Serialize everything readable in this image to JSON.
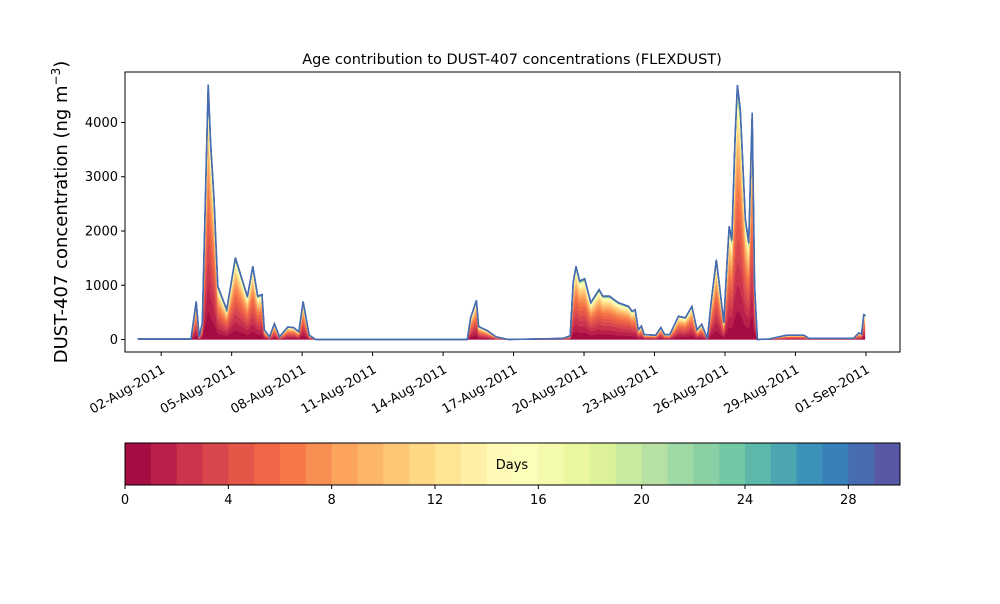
{
  "chart_data": {
    "type": "area",
    "stacked": true,
    "title": "Age contribution to DUST-407 concentrations (FLEXDUST)",
    "ylabel": "DUST-407 concentration (ng m",
    "ylabel_sup": "−3",
    "ylabel_close": ")",
    "xlabel": "",
    "x_units": "day of August 2011",
    "xlim": [
      0.46,
      33.45
    ],
    "ylim": [
      -230,
      4930
    ],
    "yticks": [
      0,
      1000,
      2000,
      3000,
      4000
    ],
    "ytick_labels": [
      "0",
      "1000",
      "2000",
      "3000",
      "4000"
    ],
    "xticks": [
      2,
      5,
      8,
      11,
      14,
      17,
      20,
      23,
      26,
      29,
      32
    ],
    "xtick_labels": [
      "02-Aug-2011",
      "05-Aug-2011",
      "08-Aug-2011",
      "11-Aug-2011",
      "14-Aug-2011",
      "17-Aug-2011",
      "20-Aug-2011",
      "23-Aug-2011",
      "26-Aug-2011",
      "29-Aug-2011",
      "01-Sep-2011"
    ],
    "grid": false,
    "total_series": {
      "x": [
        1.0,
        3.27,
        3.49,
        3.62,
        3.75,
        4.0,
        4.11,
        4.25,
        4.41,
        4.79,
        5.16,
        5.67,
        5.9,
        6.11,
        6.29,
        6.39,
        6.61,
        6.82,
        7.04,
        7.39,
        7.64,
        7.86,
        8.04,
        8.3,
        8.58,
        15.03,
        15.17,
        15.42,
        15.51,
        15.9,
        16.25,
        16.78,
        19.11,
        19.41,
        19.54,
        19.66,
        19.81,
        20.03,
        20.29,
        20.64,
        20.8,
        21.08,
        21.46,
        21.9,
        22.04,
        22.18,
        22.31,
        22.44,
        22.56,
        23.05,
        23.27,
        23.43,
        23.65,
        24.02,
        24.31,
        24.59,
        24.81,
        25.01,
        25.25,
        25.41,
        25.63,
        25.77,
        25.95,
        26.07,
        26.18,
        26.29,
        26.43,
        26.53,
        26.65,
        26.87,
        27.01,
        27.16,
        27.26,
        27.38,
        27.88,
        28.62,
        29.36,
        29.57,
        31.47,
        31.69,
        31.81,
        31.91,
        31.96
      ],
      "y": [
        10,
        10,
        700,
        50,
        300,
        4700,
        3600,
        2600,
        980,
        550,
        1510,
        790,
        1350,
        800,
        830,
        180,
        50,
        290,
        50,
        230,
        220,
        140,
        700,
        80,
        0,
        0,
        400,
        720,
        240,
        160,
        50,
        0,
        20,
        70,
        1050,
        1350,
        1080,
        1120,
        680,
        920,
        800,
        800,
        680,
        610,
        520,
        550,
        180,
        250,
        90,
        80,
        220,
        90,
        90,
        430,
        400,
        610,
        180,
        280,
        20,
        680,
        1470,
        980,
        310,
        1290,
        2090,
        1840,
        3750,
        4690,
        4240,
        2210,
        1790,
        4180,
        980,
        0,
        10,
        80,
        80,
        20,
        20,
        120,
        100,
        460,
        450
      ]
    },
    "age_fraction_profile": [
      0.12,
      0.11,
      0.1,
      0.09,
      0.085,
      0.08,
      0.07,
      0.06,
      0.05,
      0.045,
      0.04,
      0.035,
      0.03,
      0.025,
      0.02,
      0.015,
      0.012,
      0.01,
      0.008,
      0.007,
      0.006,
      0.005,
      0.004,
      0.004,
      0.003,
      0.003,
      0.003,
      0.002,
      0.002,
      0.002
    ],
    "colorbar": {
      "label": "Days",
      "range": [
        0,
        30
      ],
      "bins": 30,
      "ticks": [
        "0",
        "4",
        "8",
        "12",
        "16",
        "20",
        "24",
        "28"
      ],
      "colormap_anchors": [
        "#9e0142",
        "#d53e4f",
        "#f46d43",
        "#fdae61",
        "#fee08b",
        "#ffffbf",
        "#e6f598",
        "#abdda4",
        "#66c2a5",
        "#3288bd",
        "#5e4fa2"
      ]
    }
  }
}
